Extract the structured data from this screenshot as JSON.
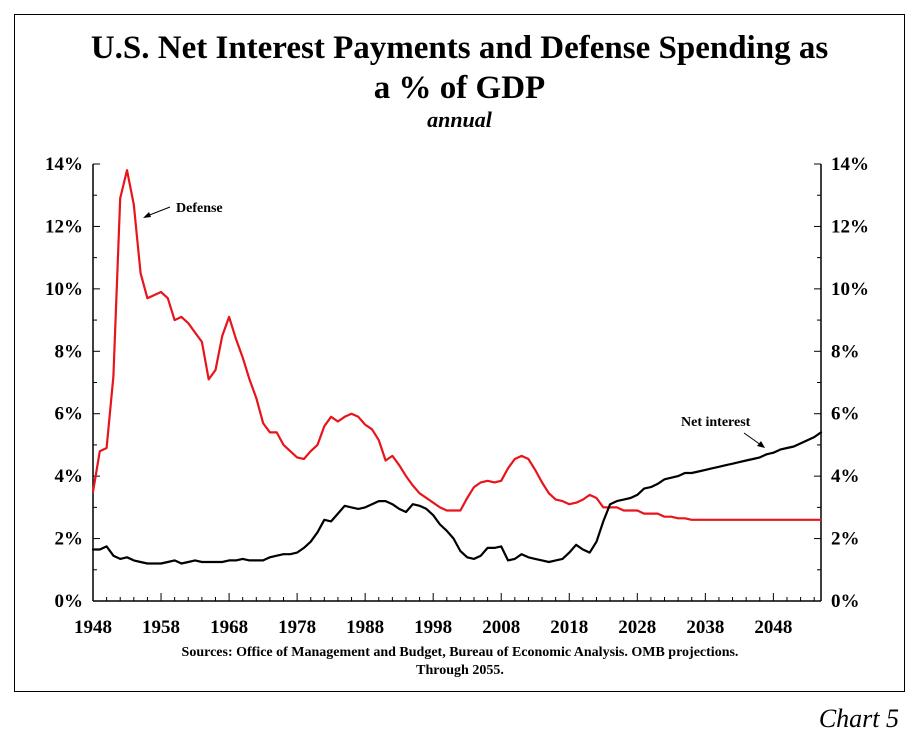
{
  "title_line1": "U.S. Net Interest Payments and Defense Spending as",
  "title_line2": "a % of GDP",
  "subtitle": "annual",
  "sources_line1": "Sources: Office of Management and Budget, Bureau of Economic Analysis. OMB projections.",
  "sources_line2": "Through 2055.",
  "footer_label": "Chart 5",
  "chart_data": {
    "type": "line",
    "title": "U.S. Net Interest Payments and Defense Spending as a % of GDP",
    "subtitle": "annual",
    "xlim": [
      1948,
      2055
    ],
    "ylim": [
      0,
      14
    ],
    "x_ticks": [
      1948,
      1958,
      1968,
      1978,
      1988,
      1998,
      2008,
      2018,
      2028,
      2038,
      2048
    ],
    "y_ticks": [
      0,
      2,
      4,
      6,
      8,
      10,
      12,
      14
    ],
    "y_tick_labels": [
      "0%",
      "2%",
      "4%",
      "6%",
      "8%",
      "10%",
      "12%",
      "14%"
    ],
    "grid": false,
    "annotations": [
      {
        "text": "Defense",
        "x": 1953.5,
        "y": 12.7
      },
      {
        "text": "Net interest",
        "x": 2045,
        "y": 4.8
      }
    ],
    "series": [
      {
        "name": "Defense",
        "color": "#e8141c",
        "x": [
          1948,
          1949,
          1950,
          1951,
          1952,
          1953,
          1954,
          1955,
          1956,
          1957,
          1958,
          1959,
          1960,
          1961,
          1962,
          1963,
          1964,
          1965,
          1966,
          1967,
          1968,
          1969,
          1970,
          1971,
          1972,
          1973,
          1974,
          1975,
          1976,
          1977,
          1978,
          1979,
          1980,
          1981,
          1982,
          1983,
          1984,
          1985,
          1986,
          1987,
          1988,
          1989,
          1990,
          1991,
          1992,
          1993,
          1994,
          1995,
          1996,
          1997,
          1998,
          1999,
          2000,
          2001,
          2002,
          2003,
          2004,
          2005,
          2006,
          2007,
          2008,
          2009,
          2010,
          2011,
          2012,
          2013,
          2014,
          2015,
          2016,
          2017,
          2018,
          2019,
          2020,
          2021,
          2022,
          2023,
          2024,
          2025,
          2026,
          2027,
          2028,
          2029,
          2030,
          2031,
          2032,
          2033,
          2034,
          2035,
          2036,
          2037,
          2038,
          2039,
          2040,
          2041,
          2042,
          2043,
          2044,
          2045,
          2046,
          2047,
          2048,
          2049,
          2050,
          2051,
          2052,
          2053,
          2054,
          2055
        ],
        "values": [
          3.5,
          4.8,
          4.9,
          7.2,
          12.9,
          13.8,
          12.7,
          10.5,
          9.7,
          9.8,
          9.9,
          9.7,
          9.0,
          9.1,
          8.9,
          8.6,
          8.3,
          7.1,
          7.4,
          8.5,
          9.1,
          8.4,
          7.8,
          7.1,
          6.5,
          5.7,
          5.4,
          5.4,
          5.0,
          4.8,
          4.6,
          4.55,
          4.8,
          5.0,
          5.6,
          5.9,
          5.75,
          5.9,
          6.0,
          5.9,
          5.65,
          5.5,
          5.15,
          4.5,
          4.65,
          4.35,
          4.0,
          3.7,
          3.45,
          3.3,
          3.15,
          3.0,
          2.9,
          2.9,
          2.9,
          3.3,
          3.65,
          3.8,
          3.85,
          3.8,
          3.85,
          4.25,
          4.55,
          4.65,
          4.55,
          4.2,
          3.8,
          3.45,
          3.25,
          3.2,
          3.1,
          3.15,
          3.25,
          3.4,
          3.3,
          3.0,
          3.0,
          3.0,
          2.9,
          2.9,
          2.9,
          2.8,
          2.8,
          2.8,
          2.7,
          2.7,
          2.65,
          2.65,
          2.6,
          2.6,
          2.6,
          2.6,
          2.6,
          2.6,
          2.6,
          2.6,
          2.6,
          2.6,
          2.6,
          2.6,
          2.6,
          2.6,
          2.6,
          2.6,
          2.6,
          2.6,
          2.6,
          2.6
        ]
      },
      {
        "name": "Net interest",
        "color": "#000000",
        "x": [
          1948,
          1949,
          1950,
          1951,
          1952,
          1953,
          1954,
          1955,
          1956,
          1957,
          1958,
          1959,
          1960,
          1961,
          1962,
          1963,
          1964,
          1965,
          1966,
          1967,
          1968,
          1969,
          1970,
          1971,
          1972,
          1973,
          1974,
          1975,
          1976,
          1977,
          1978,
          1979,
          1980,
          1981,
          1982,
          1983,
          1984,
          1985,
          1986,
          1987,
          1988,
          1989,
          1990,
          1991,
          1992,
          1993,
          1994,
          1995,
          1996,
          1997,
          1998,
          1999,
          2000,
          2001,
          2002,
          2003,
          2004,
          2005,
          2006,
          2007,
          2008,
          2009,
          2010,
          2011,
          2012,
          2013,
          2014,
          2015,
          2016,
          2017,
          2018,
          2019,
          2020,
          2021,
          2022,
          2023,
          2024,
          2025,
          2026,
          2027,
          2028,
          2029,
          2030,
          2031,
          2032,
          2033,
          2034,
          2035,
          2036,
          2037,
          2038,
          2039,
          2040,
          2041,
          2042,
          2043,
          2044,
          2045,
          2046,
          2047,
          2048,
          2049,
          2050,
          2051,
          2052,
          2053,
          2054,
          2055
        ],
        "values": [
          1.65,
          1.65,
          1.75,
          1.45,
          1.35,
          1.4,
          1.3,
          1.25,
          1.2,
          1.2,
          1.2,
          1.25,
          1.3,
          1.2,
          1.25,
          1.3,
          1.25,
          1.25,
          1.25,
          1.25,
          1.3,
          1.3,
          1.35,
          1.3,
          1.3,
          1.3,
          1.4,
          1.45,
          1.5,
          1.5,
          1.55,
          1.7,
          1.9,
          2.2,
          2.6,
          2.55,
          2.8,
          3.05,
          3.0,
          2.95,
          3.0,
          3.1,
          3.2,
          3.2,
          3.1,
          2.95,
          2.85,
          3.1,
          3.05,
          2.95,
          2.75,
          2.45,
          2.25,
          2.0,
          1.6,
          1.4,
          1.35,
          1.45,
          1.7,
          1.7,
          1.75,
          1.3,
          1.35,
          1.5,
          1.4,
          1.35,
          1.3,
          1.25,
          1.3,
          1.35,
          1.55,
          1.8,
          1.65,
          1.55,
          1.9,
          2.55,
          3.1,
          3.2,
          3.25,
          3.3,
          3.4,
          3.6,
          3.65,
          3.75,
          3.9,
          3.95,
          4.0,
          4.1,
          4.1,
          4.15,
          4.2,
          4.25,
          4.3,
          4.35,
          4.4,
          4.45,
          4.5,
          4.55,
          4.6,
          4.7,
          4.75,
          4.85,
          4.9,
          4.95,
          5.05,
          5.15,
          5.25,
          5.4
        ]
      }
    ]
  }
}
